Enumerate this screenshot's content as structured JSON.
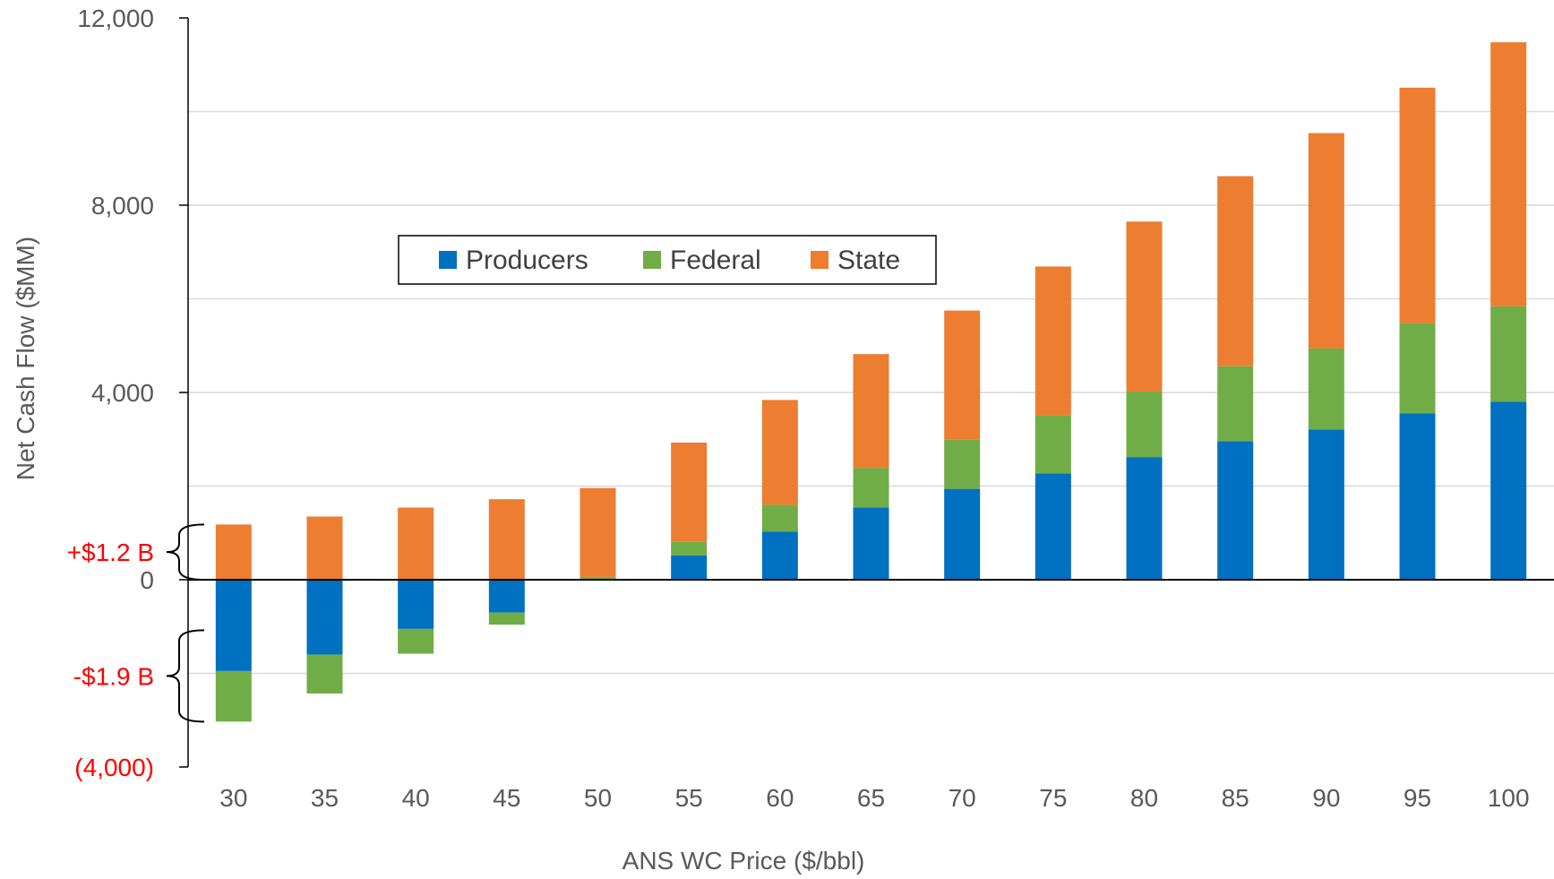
{
  "chart_data": {
    "type": "bar",
    "stacked": true,
    "xlabel": "ANS WC Price ($/bbl)",
    "ylabel": "Net Cash Flow ($MM)",
    "categories": [
      "30",
      "35",
      "40",
      "45",
      "50",
      "55",
      "60",
      "65",
      "70",
      "75",
      "80",
      "85",
      "90",
      "95",
      "100"
    ],
    "series": [
      {
        "name": "Producers",
        "color": "#0070c0",
        "values": [
          -1950,
          -1600,
          -1050,
          -700,
          20,
          520,
          1030,
          1540,
          1940,
          2270,
          2620,
          2960,
          3210,
          3550,
          3800
        ]
      },
      {
        "name": "Federal",
        "color": "#70ad47",
        "values": [
          -1080,
          -830,
          -530,
          -260,
          40,
          290,
          570,
          850,
          1050,
          1240,
          1400,
          1600,
          1730,
          1930,
          2040
        ]
      },
      {
        "name": "State",
        "color": "#ed7d31",
        "values": [
          1180,
          1350,
          1540,
          1720,
          1900,
          2120,
          2240,
          2430,
          2760,
          3180,
          3630,
          4060,
          4600,
          5030,
          5640
        ]
      }
    ],
    "ylim": [
      -4000,
      12000
    ],
    "yticks": [
      {
        "value": 12000,
        "label": "12,000"
      },
      {
        "value": 8000,
        "label": "8,000"
      },
      {
        "value": 4000,
        "label": "4,000"
      },
      {
        "value": 0,
        "label": "0"
      },
      {
        "value": -4000,
        "label": "(4,000)",
        "color": "#ff0000"
      }
    ],
    "gridlines": [
      -2000,
      2000,
      4000,
      6000,
      8000,
      10000
    ],
    "annotations": [
      {
        "text": "+$1.2 B",
        "range": [
          0,
          1180
        ]
      },
      {
        "text": "-$1.9 B",
        "range": [
          -3030,
          -1080
        ]
      }
    ],
    "legend_position": "inside-top-left"
  }
}
